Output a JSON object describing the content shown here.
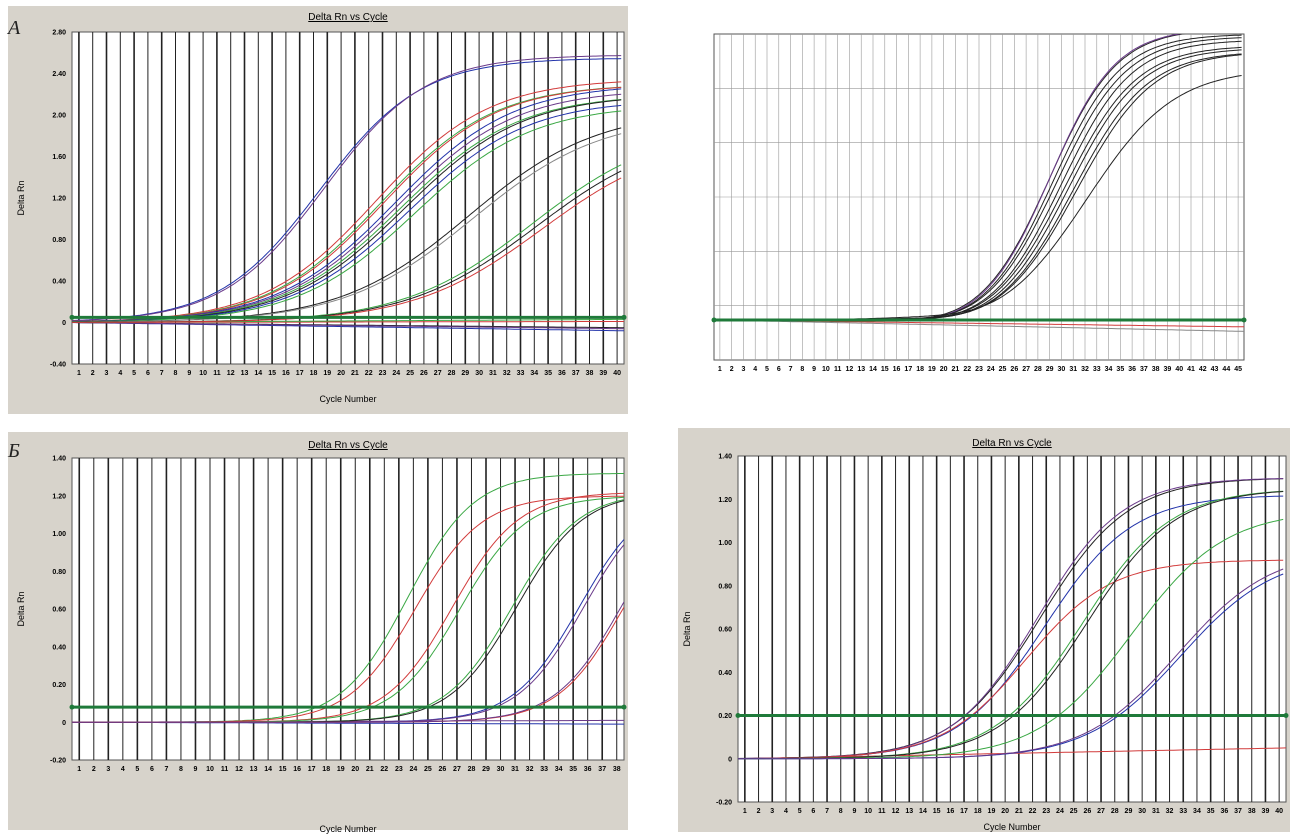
{
  "panel_labels": {
    "A": "А",
    "B": "Б"
  },
  "colors": {
    "background_panel": "#d7d3cb",
    "plot_bg": "#ffffff",
    "threshold": "#1f7a3a",
    "blue": "#2233aa",
    "red": "#d23b3b",
    "green": "#3aa844",
    "black": "#222222",
    "purple": "#6a3a8a",
    "gray": "#888888"
  },
  "chart_data": [
    {
      "panel": "A-left",
      "type": "line",
      "title": "Delta Rn vs Cycle",
      "xlabel": "Cycle Number",
      "ylabel": "Delta Rn",
      "xlim": [
        1,
        40
      ],
      "ylim": [
        -0.4,
        2.8
      ],
      "yticks": [
        "2.80",
        "2.40",
        "2.00",
        "1.60",
        "1.20",
        "0.80",
        "0.40",
        "0",
        "-0.40"
      ],
      "ytick_values": [
        2.8,
        2.4,
        2.0,
        1.6,
        1.2,
        0.8,
        0.4,
        0,
        -0.4
      ],
      "xticks": [
        "1",
        "2",
        "3",
        "4",
        "5",
        "6",
        "7",
        "8",
        "9",
        "10",
        "11",
        "12",
        "13",
        "14",
        "15",
        "16",
        "17",
        "18",
        "19",
        "20",
        "21",
        "22",
        "23",
        "24",
        "25",
        "26",
        "27",
        "28",
        "29",
        "30",
        "31",
        "32",
        "33",
        "34",
        "35",
        "36",
        "37",
        "38",
        "39",
        "40"
      ],
      "threshold": 0.05,
      "grid": true,
      "series": [
        {
          "color": "blue",
          "ymax": 2.55,
          "mid": 18.5,
          "k": 0.28
        },
        {
          "color": "purple",
          "ymax": 2.58,
          "mid": 18.8,
          "k": 0.28
        },
        {
          "color": "red",
          "ymax": 2.35,
          "mid": 22.5,
          "k": 0.25
        },
        {
          "color": "green",
          "ymax": 2.3,
          "mid": 22.8,
          "k": 0.25
        },
        {
          "color": "red",
          "ymax": 2.3,
          "mid": 23.0,
          "k": 0.25
        },
        {
          "color": "blue",
          "ymax": 2.3,
          "mid": 23.8,
          "k": 0.24
        },
        {
          "color": "purple",
          "ymax": 2.25,
          "mid": 24.0,
          "k": 0.24
        },
        {
          "color": "green",
          "ymax": 2.2,
          "mid": 24.2,
          "k": 0.24
        },
        {
          "color": "black",
          "ymax": 2.2,
          "mid": 24.5,
          "k": 0.24
        },
        {
          "color": "blue",
          "ymax": 2.15,
          "mid": 24.8,
          "k": 0.24
        },
        {
          "color": "green",
          "ymax": 2.1,
          "mid": 25.2,
          "k": 0.24
        },
        {
          "color": "black",
          "ymax": 2.05,
          "mid": 29.0,
          "k": 0.22
        },
        {
          "color": "gray",
          "ymax": 2.0,
          "mid": 29.3,
          "k": 0.22
        },
        {
          "color": "green",
          "ymax": 1.9,
          "mid": 33.5,
          "k": 0.22
        },
        {
          "color": "black",
          "ymax": 1.85,
          "mid": 33.8,
          "k": 0.22
        },
        {
          "color": "red",
          "ymax": 1.8,
          "mid": 34.2,
          "k": 0.22
        }
      ],
      "flat_series": [
        {
          "color": "blue",
          "end": -0.08
        },
        {
          "color": "black",
          "end": -0.05
        },
        {
          "color": "red",
          "end": 0.01
        },
        {
          "color": "green",
          "end": 0.03
        },
        {
          "color": "purple",
          "end": -0.06
        }
      ]
    },
    {
      "panel": "A-right",
      "type": "line",
      "title": "",
      "xlabel": "",
      "ylabel": "",
      "xlim": [
        1,
        45
      ],
      "ylim": [
        -0.35,
        2.5
      ],
      "yticks": [],
      "xticks": [
        "1",
        "2",
        "3",
        "4",
        "5",
        "6",
        "7",
        "8",
        "9",
        "10",
        "11",
        "12",
        "13",
        "14",
        "15",
        "16",
        "17",
        "18",
        "19",
        "20",
        "21",
        "22",
        "23",
        "24",
        "25",
        "26",
        "27",
        "28",
        "29",
        "30",
        "31",
        "32",
        "33",
        "34",
        "35",
        "36",
        "37",
        "38",
        "39",
        "40",
        "41",
        "42",
        "43",
        "44",
        "45"
      ],
      "threshold": 0.0,
      "grid": true,
      "series": [
        {
          "color": "black",
          "ymax": 2.55,
          "mid": 29.0,
          "k": 0.36
        },
        {
          "color": "black",
          "ymax": 2.5,
          "mid": 29.3,
          "k": 0.36
        },
        {
          "color": "purple",
          "ymax": 2.55,
          "mid": 29.0,
          "k": 0.37
        },
        {
          "color": "black",
          "ymax": 2.48,
          "mid": 29.6,
          "k": 0.35
        },
        {
          "color": "black",
          "ymax": 2.45,
          "mid": 30.0,
          "k": 0.35
        },
        {
          "color": "black",
          "ymax": 2.4,
          "mid": 30.3,
          "k": 0.34
        },
        {
          "color": "black",
          "ymax": 2.38,
          "mid": 30.6,
          "k": 0.34
        },
        {
          "color": "black",
          "ymax": 2.35,
          "mid": 31.0,
          "k": 0.33
        },
        {
          "color": "black",
          "ymax": 2.35,
          "mid": 31.3,
          "k": 0.32
        },
        {
          "color": "black",
          "ymax": 2.2,
          "mid": 32.2,
          "k": 0.28
        }
      ],
      "flat_series": [
        {
          "color": "gray",
          "end": -0.1
        },
        {
          "color": "red",
          "end": -0.06
        }
      ]
    },
    {
      "panel": "B-left",
      "type": "line",
      "title": "Delta Rn vs Cycle",
      "xlabel": "Cycle Number",
      "ylabel": "Delta Rn",
      "xlim": [
        1,
        38
      ],
      "ylim": [
        -0.2,
        1.4
      ],
      "yticks": [
        "1.40",
        "1.20",
        "1.00",
        "0.80",
        "0.60",
        "0.40",
        "0.20",
        "0",
        "-0.20"
      ],
      "ytick_values": [
        1.4,
        1.2,
        1.0,
        0.8,
        0.6,
        0.4,
        0.2,
        0,
        -0.2
      ],
      "xticks": [
        "1",
        "2",
        "3",
        "4",
        "5",
        "6",
        "7",
        "8",
        "9",
        "10",
        "11",
        "12",
        "13",
        "14",
        "15",
        "16",
        "17",
        "18",
        "19",
        "20",
        "21",
        "22",
        "23",
        "24",
        "25",
        "26",
        "27",
        "28",
        "29",
        "30",
        "31",
        "32",
        "33",
        "34",
        "35",
        "36",
        "37",
        "38"
      ],
      "threshold": 0.08,
      "grid": true,
      "series": [
        {
          "color": "green",
          "ymax": 1.32,
          "mid": 23.5,
          "k": 0.45
        },
        {
          "color": "red",
          "ymax": 1.2,
          "mid": 24.0,
          "k": 0.45
        },
        {
          "color": "red",
          "ymax": 1.22,
          "mid": 26.5,
          "k": 0.45
        },
        {
          "color": "green",
          "ymax": 1.2,
          "mid": 27.0,
          "k": 0.45
        },
        {
          "color": "green",
          "ymax": 1.22,
          "mid": 30.5,
          "k": 0.45
        },
        {
          "color": "black",
          "ymax": 1.22,
          "mid": 30.8,
          "k": 0.45
        },
        {
          "color": "blue",
          "ymax": 1.22,
          "mid": 35.0,
          "k": 0.45
        },
        {
          "color": "purple",
          "ymax": 1.22,
          "mid": 35.3,
          "k": 0.45
        },
        {
          "color": "red",
          "ymax": 1.22,
          "mid": 38.0,
          "k": 0.45
        },
        {
          "color": "purple",
          "ymax": 1.22,
          "mid": 37.8,
          "k": 0.45
        }
      ],
      "flat_series": [
        {
          "color": "blue",
          "end": -0.01
        },
        {
          "color": "purple",
          "end": 0.01
        }
      ]
    },
    {
      "panel": "B-right",
      "type": "line",
      "title": "Delta Rn vs Cycle",
      "xlabel": "Cycle Number",
      "ylabel": "Delta Rn",
      "xlim": [
        1,
        40
      ],
      "ylim": [
        -0.2,
        1.4
      ],
      "yticks": [
        "1.40",
        "1.20",
        "1.00",
        "0.80",
        "0.60",
        "0.40",
        "0.20",
        "0",
        "-0.20"
      ],
      "ytick_values": [
        1.4,
        1.2,
        1.0,
        0.8,
        0.6,
        0.4,
        0.2,
        0,
        -0.2
      ],
      "xticks": [
        "1",
        "2",
        "3",
        "4",
        "5",
        "6",
        "7",
        "8",
        "9",
        "10",
        "11",
        "12",
        "13",
        "14",
        "15",
        "16",
        "17",
        "18",
        "19",
        "20",
        "21",
        "22",
        "23",
        "24",
        "25",
        "26",
        "27",
        "28",
        "29",
        "30",
        "31",
        "32",
        "33",
        "34",
        "35",
        "36",
        "37",
        "38",
        "39",
        "40"
      ],
      "threshold": 0.2,
      "grid": true,
      "series": [
        {
          "color": "black",
          "ymax": 1.3,
          "mid": 22.5,
          "k": 0.32
        },
        {
          "color": "purple",
          "ymax": 1.3,
          "mid": 22.3,
          "k": 0.33
        },
        {
          "color": "blue",
          "ymax": 1.22,
          "mid": 22.8,
          "k": 0.32
        },
        {
          "color": "red",
          "ymax": 0.92,
          "mid": 21.5,
          "k": 0.33
        },
        {
          "color": "green",
          "ymax": 1.25,
          "mid": 25.5,
          "k": 0.32
        },
        {
          "color": "black",
          "ymax": 1.25,
          "mid": 25.8,
          "k": 0.32
        },
        {
          "color": "green",
          "ymax": 1.15,
          "mid": 29.0,
          "k": 0.3
        },
        {
          "color": "blue",
          "ymax": 0.95,
          "mid": 32.5,
          "k": 0.3
        },
        {
          "color": "purple",
          "ymax": 0.97,
          "mid": 32.3,
          "k": 0.3
        }
      ],
      "flat_series": [
        {
          "color": "red",
          "end": 0.05
        }
      ]
    }
  ]
}
